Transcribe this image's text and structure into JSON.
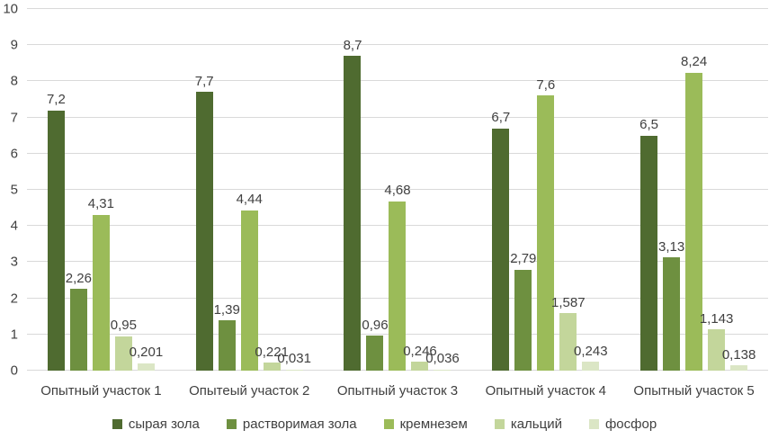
{
  "chart_data": {
    "type": "bar",
    "title": "",
    "xlabel": "",
    "ylabel": "",
    "ylim": [
      0,
      10
    ],
    "yticks": [
      0,
      1,
      2,
      3,
      4,
      5,
      6,
      7,
      8,
      9,
      10
    ],
    "grid": true,
    "legend_position": "bottom",
    "gridline_color": "#d9d9d9",
    "text_color": "#404040",
    "categories": [
      "Опытный участок 1",
      "Опытеый участок 2",
      "Опытный участок 3",
      "Опытный участок 4",
      "Опытный участок 5"
    ],
    "series": [
      {
        "name": "сырая зола",
        "color": "#4f6b30",
        "values": [
          7.2,
          7.7,
          8.7,
          6.7,
          6.5
        ],
        "labels": [
          "7,2",
          "7,7",
          "8,7",
          "6,7",
          "6,5"
        ]
      },
      {
        "name": "растворимая зола",
        "color": "#6e9040",
        "values": [
          2.26,
          1.39,
          0.96,
          2.79,
          3.13
        ],
        "labels": [
          "2,26",
          "1,39",
          "0,96",
          "2,79",
          "3,13"
        ]
      },
      {
        "name": "кремнезем",
        "color": "#9bbb59",
        "values": [
          4.31,
          4.44,
          4.68,
          7.6,
          8.24
        ],
        "labels": [
          "4,31",
          "4,44",
          "4,68",
          "7,6",
          "8,24"
        ]
      },
      {
        "name": "кальций",
        "color": "#c3d69b",
        "values": [
          0.95,
          0.221,
          0.246,
          1.587,
          1.143
        ],
        "labels": [
          "0,95",
          "0,221",
          "0,246",
          "1,587",
          "1,143"
        ]
      },
      {
        "name": "фосфор",
        "color": "#dbe6c5",
        "values": [
          0.201,
          0.031,
          0.036,
          0.243,
          0.138
        ],
        "labels": [
          "0,201",
          "0,031",
          "0,036",
          "0,243",
          "0,138"
        ]
      }
    ]
  }
}
